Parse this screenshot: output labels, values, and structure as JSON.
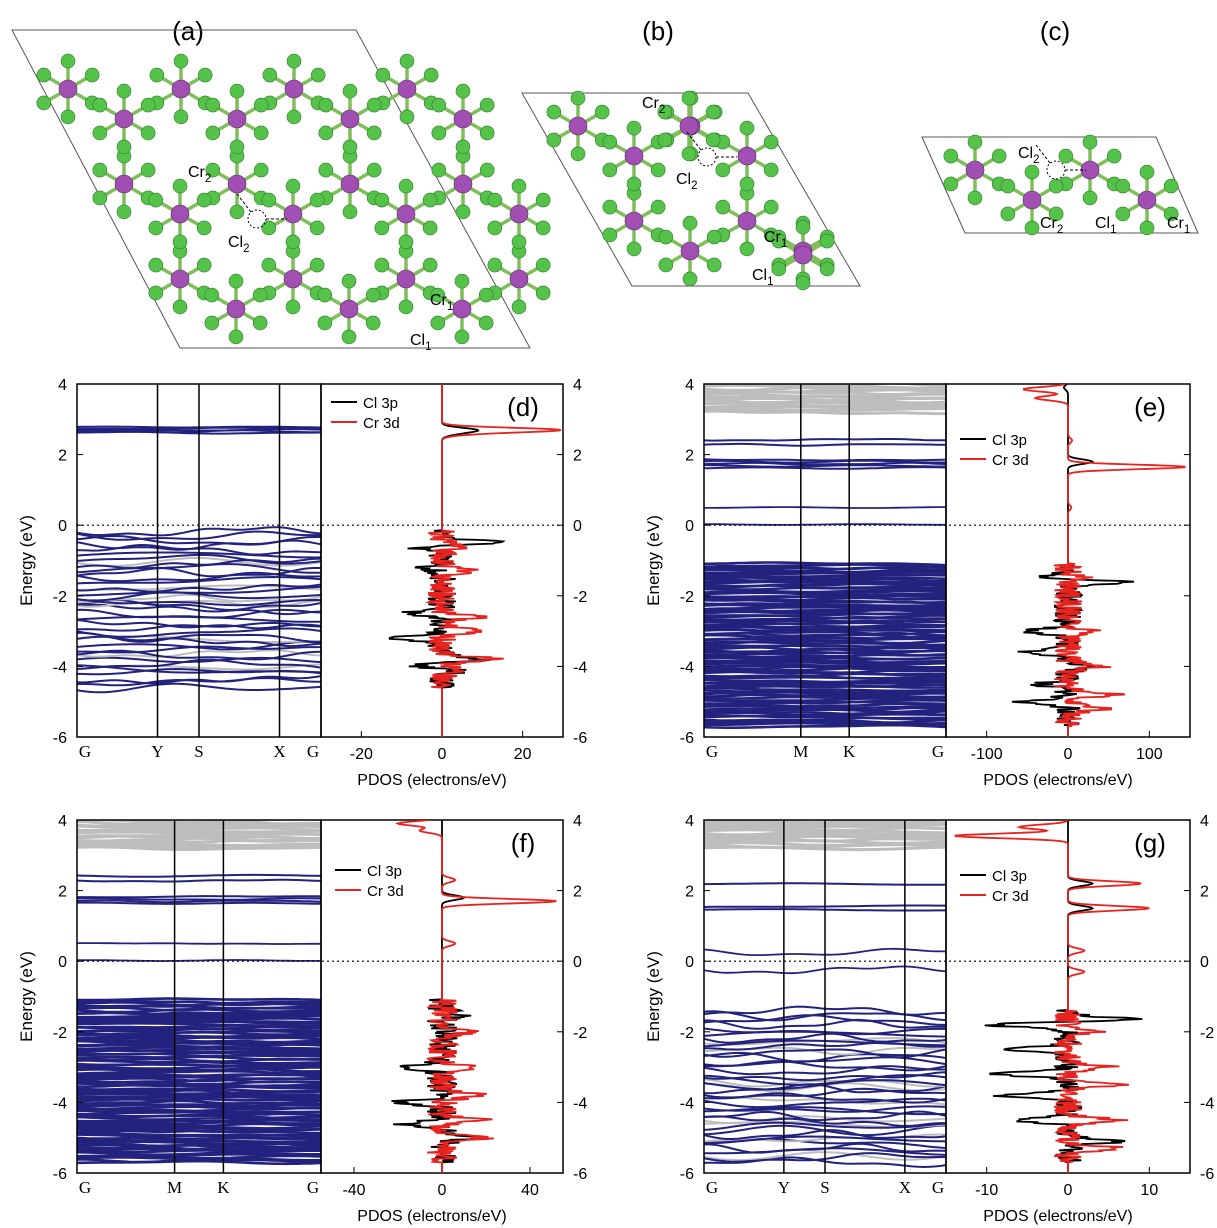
{
  "colors": {
    "chromium_atom": "#a24fb3",
    "chlorine_atom": "#55c24a",
    "valence_band": "#23237f",
    "spin_down_band": "#bdbdbd",
    "cl3p_line": "#000000",
    "cr3d_line": "#e8231f"
  },
  "structures": [
    {
      "panel_label": "(a)",
      "cr2_label": "Cr2",
      "cl2_label": "Cl2",
      "cr1_label": "Cr1",
      "cl1_label": "Cl1"
    },
    {
      "panel_label": "(b)",
      "cr2_label": "Cr2",
      "cl2_label": "Cl2",
      "cr1_label": "Cr1",
      "cl1_label": "Cl1"
    },
    {
      "panel_label": "(c)",
      "cr2_label": "Cr2",
      "cl2_label": "Cl2",
      "cr1_label": "Cr1",
      "cl1_label": "Cl1"
    }
  ],
  "chart_data": [
    {
      "type": "line",
      "panel_label": "(d)",
      "ylabel": "Energy (eV)",
      "xlabel": "PDOS (electrons/eV)",
      "ylim": [
        -6,
        4
      ],
      "yticks": [
        -6,
        -4,
        -2,
        0,
        2,
        4
      ],
      "kpath": [
        "G",
        "Y",
        "S",
        "X",
        "G"
      ],
      "pdos_xlim": [
        -30,
        30
      ],
      "pdos_xticks": [
        -20,
        0,
        20
      ],
      "conduction_bands_eV": [
        2.62,
        2.66,
        2.7,
        2.74,
        2.78
      ],
      "valence_band_range_eV": [
        -4.6,
        -0.15
      ],
      "series": [
        {
          "name": "Cl 3p",
          "peaks": [
            [
              -0.6,
              -9
            ],
            [
              -0.5,
              16
            ],
            [
              -1.2,
              -4
            ],
            [
              -2.5,
              -8
            ],
            [
              -3.2,
              -11
            ],
            [
              -4.0,
              -8
            ],
            [
              -3.8,
              10
            ],
            [
              -4.1,
              6
            ],
            [
              2.6,
              3
            ],
            [
              2.7,
              8
            ]
          ]
        },
        {
          "name": "Cr 3d",
          "peaks": [
            [
              -0.6,
              5
            ],
            [
              -1.3,
              7
            ],
            [
              -2.6,
              9
            ],
            [
              -3.0,
              11
            ],
            [
              -3.8,
              14
            ],
            [
              -4.1,
              5
            ],
            [
              2.7,
              28
            ],
            [
              2.6,
              5
            ]
          ]
        }
      ]
    },
    {
      "type": "line",
      "panel_label": "(e)",
      "ylabel": "Energy (eV)",
      "xlabel": "PDOS (electrons/eV)",
      "ylim": [
        -6,
        4
      ],
      "yticks": [
        -6,
        -4,
        -2,
        0,
        2,
        4
      ],
      "kpath": [
        "G",
        "M",
        "K",
        "G"
      ],
      "pdos_xlim": [
        -150,
        150
      ],
      "pdos_xticks": [
        -100,
        0,
        100
      ],
      "spin_down_range_eV": [
        3.2,
        4.0
      ],
      "conduction_bands_eV": [
        1.62,
        1.68,
        1.74,
        1.8,
        1.86,
        2.28,
        2.42
      ],
      "midgap_bands_eV": [
        0.02,
        0.5
      ],
      "valence_band_range_eV": [
        -5.7,
        -1.1
      ],
      "series": [
        {
          "name": "Cl 3p",
          "peaks": [
            [
              -1.5,
              -40
            ],
            [
              -1.6,
              80
            ],
            [
              -3.0,
              -55
            ],
            [
              -3.6,
              -60
            ],
            [
              -4.5,
              -35
            ],
            [
              -5.0,
              -55
            ],
            [
              -4.0,
              30
            ],
            [
              1.8,
              30
            ],
            [
              3.9,
              -5
            ]
          ]
        },
        {
          "name": "Cr 3d",
          "peaks": [
            [
              -1.5,
              20
            ],
            [
              -3.0,
              25
            ],
            [
              -4.0,
              40
            ],
            [
              -4.8,
              55
            ],
            [
              -5.2,
              40
            ],
            [
              1.65,
              145
            ],
            [
              0.5,
              4
            ],
            [
              2.4,
              5
            ],
            [
              3.6,
              -40
            ],
            [
              3.85,
              -55
            ]
          ]
        }
      ]
    },
    {
      "type": "line",
      "panel_label": "(f)",
      "ylabel": "Energy (eV)",
      "xlabel": "PDOS (electrons/eV)",
      "ylim": [
        -6,
        4
      ],
      "yticks": [
        -6,
        -4,
        -2,
        0,
        2,
        4
      ],
      "kpath": [
        "G",
        "M",
        "K",
        "G"
      ],
      "pdos_xlim": [
        -55,
        55
      ],
      "pdos_xticks": [
        -40,
        0,
        40
      ],
      "spin_down_range_eV": [
        3.2,
        4.0
      ],
      "conduction_bands_eV": [
        1.64,
        1.7,
        1.76,
        1.82,
        2.28,
        2.42
      ],
      "midgap_bands_eV": [
        0.02,
        0.5
      ],
      "valence_band_range_eV": [
        -5.7,
        -1.1
      ],
      "series": [
        {
          "name": "Cl 3p",
          "peaks": [
            [
              -1.5,
              -18
            ],
            [
              -1.5,
              28
            ],
            [
              -3.0,
              -20
            ],
            [
              -4.0,
              -22
            ],
            [
              -4.6,
              -18
            ],
            [
              -5.0,
              15
            ],
            [
              1.8,
              10
            ]
          ]
        },
        {
          "name": "Cr 3d",
          "peaks": [
            [
              -2.0,
              12
            ],
            [
              -3.0,
              15
            ],
            [
              -3.8,
              18
            ],
            [
              -4.5,
              17
            ],
            [
              -5.0,
              20
            ],
            [
              1.7,
              52
            ],
            [
              0.5,
              6
            ],
            [
              2.3,
              6
            ],
            [
              3.7,
              -10
            ],
            [
              3.9,
              -20
            ]
          ]
        }
      ]
    },
    {
      "type": "line",
      "panel_label": "(g)",
      "ylabel": "Energy (eV)",
      "xlabel": "PDOS (electrons/eV)",
      "ylim": [
        -6,
        4
      ],
      "yticks": [
        -6,
        -4,
        -2,
        0,
        2,
        4
      ],
      "kpath": [
        "G",
        "Y",
        "S",
        "X",
        "G"
      ],
      "pdos_xlim": [
        -15,
        15
      ],
      "pdos_xticks": [
        -10,
        0,
        10
      ],
      "spin_down_range_eV": [
        3.2,
        4.0
      ],
      "conduction_bands_eV": [
        1.45,
        1.55,
        2.18
      ],
      "midgap_bands_eV": [
        -0.25,
        0.25
      ],
      "valence_band_range_eV": [
        -5.7,
        -1.4
      ],
      "series": [
        {
          "name": "Cl 3p",
          "peaks": [
            [
              -1.8,
              -10
            ],
            [
              -1.65,
              9
            ],
            [
              -2.5,
              -8
            ],
            [
              -3.2,
              -9
            ],
            [
              -3.8,
              -8
            ],
            [
              -4.5,
              -6
            ],
            [
              -5.1,
              6
            ],
            [
              2.2,
              3
            ],
            [
              1.5,
              3
            ]
          ]
        },
        {
          "name": "Cr 3d",
          "peaks": [
            [
              -2.0,
              3
            ],
            [
              -3.0,
              5
            ],
            [
              -3.5,
              6
            ],
            [
              -4.5,
              6
            ],
            [
              -5.3,
              7
            ],
            [
              2.2,
              9
            ],
            [
              1.5,
              10
            ],
            [
              0.3,
              2
            ],
            [
              -0.3,
              2
            ],
            [
              3.55,
              -14
            ],
            [
              3.8,
              -6
            ]
          ]
        }
      ]
    }
  ]
}
